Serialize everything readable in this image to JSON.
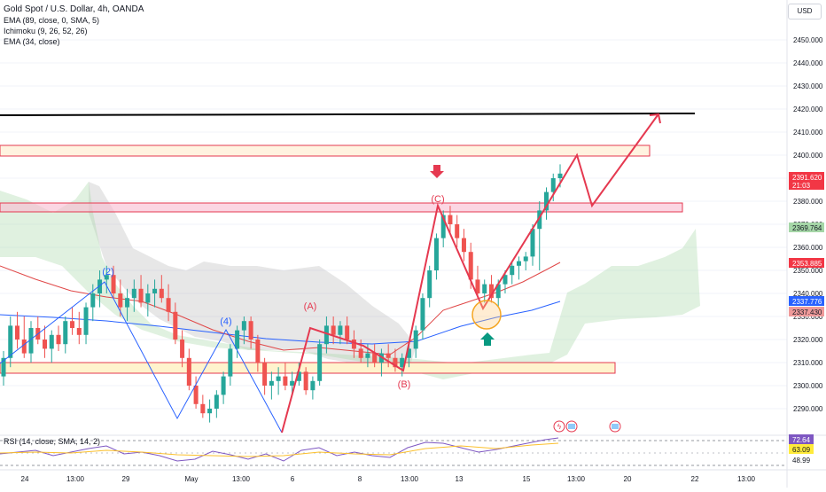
{
  "symbol_title": "Gold Spot / U.S. Dollar, 4h, OANDA",
  "indicators": [
    "EMA (89, close, 0, SMA, 5)",
    "Ichimoku (9, 26, 52, 26)",
    "EMA (34, close)"
  ],
  "currency_button": "USD",
  "price_axis": {
    "ticks": [
      "2450.000",
      "2440.000",
      "2430.000",
      "2420.000",
      "2410.000",
      "2400.000",
      "2390.000",
      "2380.000",
      "2370.000",
      "2360.000",
      "2350.000",
      "2340.000",
      "2330.000",
      "2320.000",
      "2310.000",
      "2300.000",
      "2290.000"
    ]
  },
  "price_badges": [
    {
      "price": "2391.620",
      "time": "21:03",
      "color": "#f23645"
    },
    {
      "price": "2369.764",
      "color": "#a5d6a7"
    },
    {
      "price": "2353.885",
      "color": "#f23645"
    },
    {
      "price": "2337.776",
      "color": "#2962ff"
    },
    {
      "price": "2337.430",
      "color": "#ef9a9a"
    }
  ],
  "wave_labels": {
    "w2": "(2)",
    "w4": "(4)",
    "wA": "(A)",
    "wB": "(B)",
    "wC": "(C)"
  },
  "time_axis": [
    "24",
    "13:00",
    "29",
    "May",
    "13:00",
    "6",
    "8",
    "13:00",
    "13",
    "15",
    "13:00",
    "20",
    "22",
    "13:00"
  ],
  "rsi": {
    "label": "RSI (14, close, SMA, 14, 2)",
    "badges": [
      {
        "value": "72.64",
        "color": "#7e57c2"
      },
      {
        "value": "63.09",
        "color": "#ffeb3b"
      },
      {
        "value": "48.99",
        "color": "#ffffff"
      }
    ]
  },
  "colors": {
    "up": "#26a69a",
    "down": "#ef5350",
    "wave": "#e53950",
    "ema89": "#2962ff",
    "ema34": "#e04848",
    "cloud": "#a5d6a7",
    "resistance": "#000000"
  },
  "chart_data": {
    "type": "candlestick",
    "ylim": [
      2282,
      2458
    ],
    "resistance_level": 2419,
    "zones": [
      {
        "low": 2401,
        "high": 2403
      },
      {
        "low": 2378,
        "high": 2381
      },
      {
        "low": 2308,
        "high": 2310
      }
    ],
    "projection": [
      2400,
      2380,
      2420
    ],
    "ohlc": [
      [
        2304,
        2315,
        2300,
        2312
      ],
      [
        2312,
        2330,
        2308,
        2326
      ],
      [
        2326,
        2332,
        2316,
        2320
      ],
      [
        2320,
        2330,
        2312,
        2314
      ],
      [
        2314,
        2328,
        2310,
        2325
      ],
      [
        2325,
        2330,
        2318,
        2320
      ],
      [
        2320,
        2326,
        2312,
        2316
      ],
      [
        2316,
        2324,
        2310,
        2322
      ],
      [
        2322,
        2326,
        2315,
        2318
      ],
      [
        2318,
        2330,
        2314,
        2328
      ],
      [
        2328,
        2334,
        2322,
        2325
      ],
      [
        2325,
        2332,
        2318,
        2322
      ],
      [
        2322,
        2336,
        2318,
        2334
      ],
      [
        2334,
        2344,
        2328,
        2340
      ],
      [
        2340,
        2350,
        2334,
        2346
      ],
      [
        2346,
        2352,
        2340,
        2348
      ],
      [
        2348,
        2352,
        2338,
        2340
      ],
      [
        2340,
        2346,
        2330,
        2334
      ],
      [
        2334,
        2342,
        2328,
        2338
      ],
      [
        2338,
        2346,
        2332,
        2342
      ],
      [
        2342,
        2348,
        2334,
        2336
      ],
      [
        2336,
        2344,
        2330,
        2340
      ],
      [
        2340,
        2346,
        2334,
        2342
      ],
      [
        2342,
        2348,
        2336,
        2338
      ],
      [
        2338,
        2344,
        2328,
        2332
      ],
      [
        2332,
        2336,
        2318,
        2320
      ],
      [
        2320,
        2324,
        2308,
        2312
      ],
      [
        2312,
        2316,
        2298,
        2300
      ],
      [
        2300,
        2304,
        2290,
        2292
      ],
      [
        2292,
        2296,
        2286,
        2288
      ],
      [
        2288,
        2294,
        2284,
        2290
      ],
      [
        2290,
        2298,
        2286,
        2296
      ],
      [
        2296,
        2306,
        2292,
        2304
      ],
      [
        2304,
        2318,
        2300,
        2316
      ],
      [
        2316,
        2326,
        2312,
        2324
      ],
      [
        2324,
        2330,
        2318,
        2328
      ],
      [
        2328,
        2330,
        2316,
        2320
      ],
      [
        2320,
        2322,
        2306,
        2310
      ],
      [
        2310,
        2312,
        2296,
        2300
      ],
      [
        2300,
        2306,
        2294,
        2302
      ],
      [
        2302,
        2308,
        2296,
        2304
      ],
      [
        2304,
        2310,
        2298,
        2300
      ],
      [
        2300,
        2306,
        2296,
        2302
      ],
      [
        2302,
        2310,
        2300,
        2306
      ],
      [
        2306,
        2308,
        2296,
        2298
      ],
      [
        2298,
        2304,
        2294,
        2302
      ],
      [
        2302,
        2320,
        2300,
        2318
      ],
      [
        2318,
        2330,
        2314,
        2326
      ],
      [
        2326,
        2330,
        2318,
        2322
      ],
      [
        2322,
        2328,
        2318,
        2326
      ],
      [
        2326,
        2330,
        2318,
        2320
      ],
      [
        2320,
        2324,
        2312,
        2316
      ],
      [
        2316,
        2320,
        2310,
        2312
      ],
      [
        2312,
        2318,
        2308,
        2314
      ],
      [
        2314,
        2318,
        2308,
        2310
      ],
      [
        2310,
        2316,
        2304,
        2314
      ],
      [
        2314,
        2318,
        2308,
        2312
      ],
      [
        2312,
        2316,
        2306,
        2308
      ],
      [
        2308,
        2314,
        2304,
        2312
      ],
      [
        2312,
        2318,
        2308,
        2316
      ],
      [
        2316,
        2326,
        2312,
        2324
      ],
      [
        2324,
        2340,
        2320,
        2338
      ],
      [
        2338,
        2352,
        2334,
        2350
      ],
      [
        2350,
        2366,
        2346,
        2364
      ],
      [
        2364,
        2376,
        2360,
        2374
      ],
      [
        2374,
        2378,
        2366,
        2370
      ],
      [
        2370,
        2374,
        2360,
        2364
      ],
      [
        2364,
        2368,
        2354,
        2358
      ],
      [
        2358,
        2362,
        2342,
        2346
      ],
      [
        2346,
        2352,
        2338,
        2340
      ],
      [
        2340,
        2346,
        2336,
        2344
      ],
      [
        2344,
        2348,
        2336,
        2338
      ],
      [
        2338,
        2346,
        2334,
        2344
      ],
      [
        2344,
        2350,
        2340,
        2348
      ],
      [
        2348,
        2354,
        2344,
        2352
      ],
      [
        2352,
        2356,
        2346,
        2354
      ],
      [
        2354,
        2358,
        2350,
        2356
      ],
      [
        2356,
        2370,
        2352,
        2368
      ],
      [
        2368,
        2380,
        2350,
        2376
      ],
      [
        2376,
        2386,
        2372,
        2384
      ],
      [
        2384,
        2392,
        2380,
        2390
      ],
      [
        2390,
        2396,
        2386,
        2392
      ]
    ]
  }
}
